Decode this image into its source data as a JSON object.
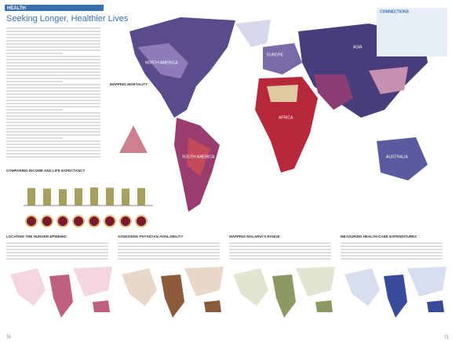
{
  "header": {
    "section": "HEALTH",
    "title": "Seeking Longer, Healthier Lives"
  },
  "map": {
    "title": "MAPPING MORTALITY",
    "labels": [
      "NORTH AMERICA",
      "SOUTH AMERICA",
      "EUROPE",
      "AFRICA",
      "ASIA",
      "AUSTRALIA"
    ]
  },
  "connections": {
    "title": "CONNECTIONS"
  },
  "income_chart": {
    "title": "COMPARING INCOME AND LIFE EXPECTANCY",
    "values": [
      62,
      60,
      58,
      61,
      64,
      63,
      60,
      62
    ],
    "ylim": [
      0,
      100
    ]
  },
  "panels": [
    {
      "title": "LOCATING THE HUNGER EPIDEMIC"
    },
    {
      "title": "ASSESSING PHYSICIAN AVAILABILITY"
    },
    {
      "title": "MAPPING MALARIA'S RANGE"
    },
    {
      "title": "MEASURING HEALTH-CARE EXPENDITURES"
    }
  ],
  "pages": [
    "70",
    "71"
  ]
}
